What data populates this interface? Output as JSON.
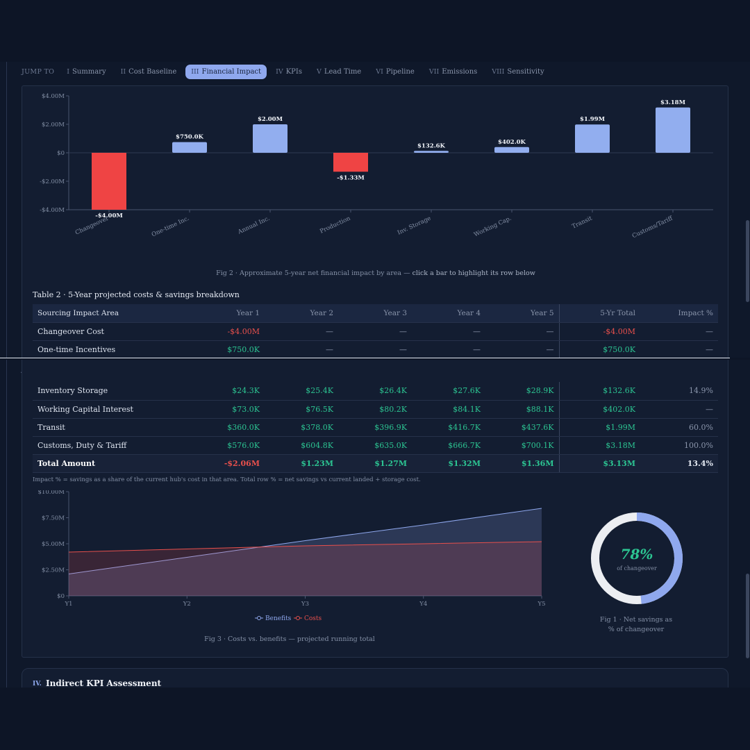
{
  "nav": {
    "jump_to": "JUMP TO",
    "items": [
      {
        "num": "I",
        "label": "Summary",
        "active": false
      },
      {
        "num": "II",
        "label": "Cost Baseline",
        "active": false
      },
      {
        "num": "III",
        "label": "Financial Impact",
        "active": true
      },
      {
        "num": "IV",
        "label": "KPIs",
        "active": false
      },
      {
        "num": "V",
        "label": "Lead Time",
        "active": false
      },
      {
        "num": "VI",
        "label": "Pipeline",
        "active": false
      },
      {
        "num": "VII",
        "label": "Emissions",
        "active": false
      },
      {
        "num": "VIII",
        "label": "Sensitivity",
        "active": false
      }
    ]
  },
  "fig2_caption": {
    "prefix": "Fig 2 · Approximate 5-year net financial impact by area — ",
    "emphasis": "click a bar to highlight its row below"
  },
  "table2": {
    "title": "Table 2 · 5-Year projected costs & savings breakdown",
    "columns": [
      "Sourcing Impact Area",
      "Year 1",
      "Year 2",
      "Year 3",
      "Year 4",
      "Year 5",
      "5-Yr Total",
      "Impact %"
    ],
    "rows_top": [
      {
        "area": "Changeover Cost",
        "cells": [
          "-$4.00M",
          "—",
          "—",
          "—",
          "—",
          "-$4.00M",
          "—"
        ],
        "kinds": [
          "neg",
          "dash",
          "dash",
          "dash",
          "dash",
          "neg",
          "dash"
        ]
      },
      {
        "area": "One-time Incentives",
        "cells": [
          "$750.0K",
          "—",
          "—",
          "—",
          "—",
          "$750.0K",
          "—"
        ],
        "kinds": [
          "pos",
          "dash",
          "dash",
          "dash",
          "dash",
          "pos",
          "dash"
        ]
      }
    ],
    "rows_bottom": [
      {
        "area": "Inventory Storage",
        "cells": [
          "$24.3K",
          "$25.4K",
          "$26.4K",
          "$27.6K",
          "$28.9K",
          "$132.6K",
          "14.9%"
        ],
        "kinds": [
          "pos",
          "pos",
          "pos",
          "pos",
          "pos",
          "pos",
          "pct"
        ]
      },
      {
        "area": "Working Capital Interest",
        "cells": [
          "$73.0K",
          "$76.5K",
          "$80.2K",
          "$84.1K",
          "$88.1K",
          "$402.0K",
          "—"
        ],
        "kinds": [
          "pos",
          "pos",
          "pos",
          "pos",
          "pos",
          "pos",
          "dash"
        ]
      },
      {
        "area": "Transit",
        "cells": [
          "$360.0K",
          "$378.0K",
          "$396.9K",
          "$416.7K",
          "$437.6K",
          "$1.99M",
          "60.0%"
        ],
        "kinds": [
          "pos",
          "pos",
          "pos",
          "pos",
          "pos",
          "pos",
          "pct"
        ]
      },
      {
        "area": "Customs, Duty & Tariff",
        "cells": [
          "$576.0K",
          "$604.8K",
          "$635.0K",
          "$666.7K",
          "$700.1K",
          "$3.18M",
          "100.0%"
        ],
        "kinds": [
          "pos",
          "pos",
          "pos",
          "pos",
          "pos",
          "pos",
          "pct"
        ]
      }
    ],
    "total_row": {
      "area": "Total Amount",
      "cells": [
        "-$2.06M",
        "$1.23M",
        "$1.27M",
        "$1.32M",
        "$1.36M",
        "$3.13M",
        "13.4%"
      ],
      "kinds": [
        "neg",
        "pos",
        "pos",
        "pos",
        "pos",
        "pos",
        "pct"
      ]
    },
    "note": "Impact % = savings as a share of the current hub's cost in that area. Total row % = net savings vs current landed + storage cost."
  },
  "fig3_caption": "Fig 3 · Costs vs. benefits — projected running total",
  "donut": {
    "percent_text": "78%",
    "value": 0.78,
    "sub": "of changeover",
    "caption_line1": "Fig 1 · Net savings as",
    "caption_line2": "% of changeover",
    "fill_color": "#8fa8ee",
    "track_color": "#eceef2"
  },
  "section_iv": {
    "roman": "IV.",
    "title": "Indirect KPI Assessment"
  },
  "colors": {
    "positive": "#2cc592",
    "negative": "#e8504c",
    "accent": "#8fa8ee",
    "bar_pos": "#92aeef",
    "bar_neg": "#ef4444"
  },
  "chart_data": [
    {
      "type": "bar",
      "categories": [
        "Changeover",
        "One-time Inc.",
        "Annual Inc.",
        "Production",
        "Inv. Storage",
        "Working Cap.",
        "Transit",
        "Customs/Tariff"
      ],
      "values": [
        -4.0,
        0.75,
        2.0,
        -1.33,
        0.1326,
        0.402,
        1.99,
        3.18
      ],
      "value_labels": [
        "-$4.00M",
        "$750.0K",
        "$2.00M",
        "-$1.33M",
        "$132.6K",
        "$402.0K",
        "$1.99M",
        "$3.18M"
      ],
      "yticks": [
        "$4.00M",
        "$2.00M",
        "$0",
        "-$2.00M",
        "-$4.00M"
      ],
      "ytick_values": [
        4,
        2,
        0,
        -2,
        -4
      ],
      "ylim": [
        -4,
        4
      ],
      "units": "$M"
    },
    {
      "type": "area",
      "x": [
        "Y1",
        "Y2",
        "Y3",
        "Y4",
        "Y5"
      ],
      "series": [
        {
          "name": "Benefits",
          "values": [
            2.1,
            3.7,
            5.3,
            6.8,
            8.4
          ],
          "color": "#8fa8ee"
        },
        {
          "name": "Costs",
          "values": [
            4.2,
            4.5,
            4.8,
            5.0,
            5.2
          ],
          "color": "#e8504c"
        }
      ],
      "yticks": [
        "$10.00M",
        "$7.50M",
        "$5.00M",
        "$2.50M",
        "$0"
      ],
      "ytick_values": [
        10,
        7.5,
        5,
        2.5,
        0
      ],
      "ylim": [
        0,
        10
      ],
      "units": "$M"
    }
  ]
}
